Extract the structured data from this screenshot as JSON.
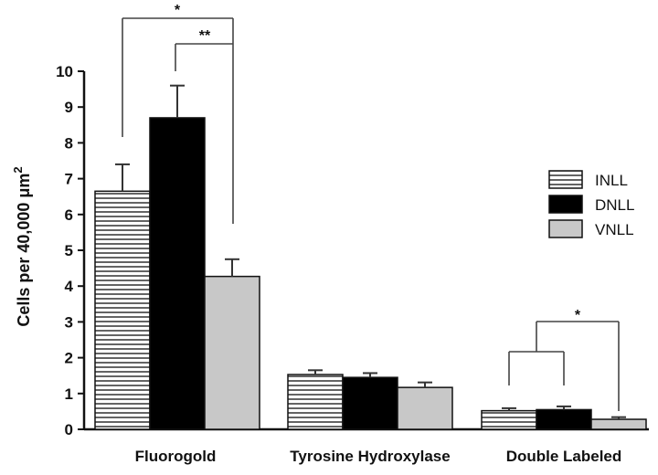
{
  "chart_data": {
    "type": "bar",
    "ylabel": "Cells per 40,000 μm",
    "ylabel_superscript": "2",
    "ylim": [
      0,
      10
    ],
    "yticks": [
      "0",
      "1",
      "2",
      "3",
      "4",
      "5",
      "6",
      "7",
      "8",
      "9",
      "10"
    ],
    "categories": [
      "Fluorogold",
      "Tyrosine Hydroxylase",
      "Double Labeled"
    ],
    "series": [
      {
        "name": "INLL",
        "values": [
          6.65,
          1.53,
          0.52
        ],
        "errors": [
          0.75,
          0.12,
          0.07
        ],
        "pattern": "horizontal-stripes",
        "color": "#ffffff"
      },
      {
        "name": "DNLL",
        "values": [
          8.7,
          1.45,
          0.55
        ],
        "errors": [
          0.9,
          0.12,
          0.09
        ],
        "pattern": "solid",
        "color": "#000000"
      },
      {
        "name": "VNLL",
        "values": [
          4.27,
          1.17,
          0.28
        ],
        "errors": [
          0.48,
          0.14,
          0.06
        ],
        "pattern": "solid",
        "color": "#c8c8c8"
      }
    ],
    "significance": [
      {
        "label": "*",
        "category": "Fluorogold",
        "from": "INLL",
        "to": "VNLL"
      },
      {
        "label": "**",
        "category": "Fluorogold",
        "from": "DNLL",
        "to": "VNLL"
      },
      {
        "label": "*",
        "category": "Double Labeled",
        "from": "INLL+DNLL",
        "to": "VNLL"
      }
    ],
    "legend_position": "right",
    "grid": false
  }
}
